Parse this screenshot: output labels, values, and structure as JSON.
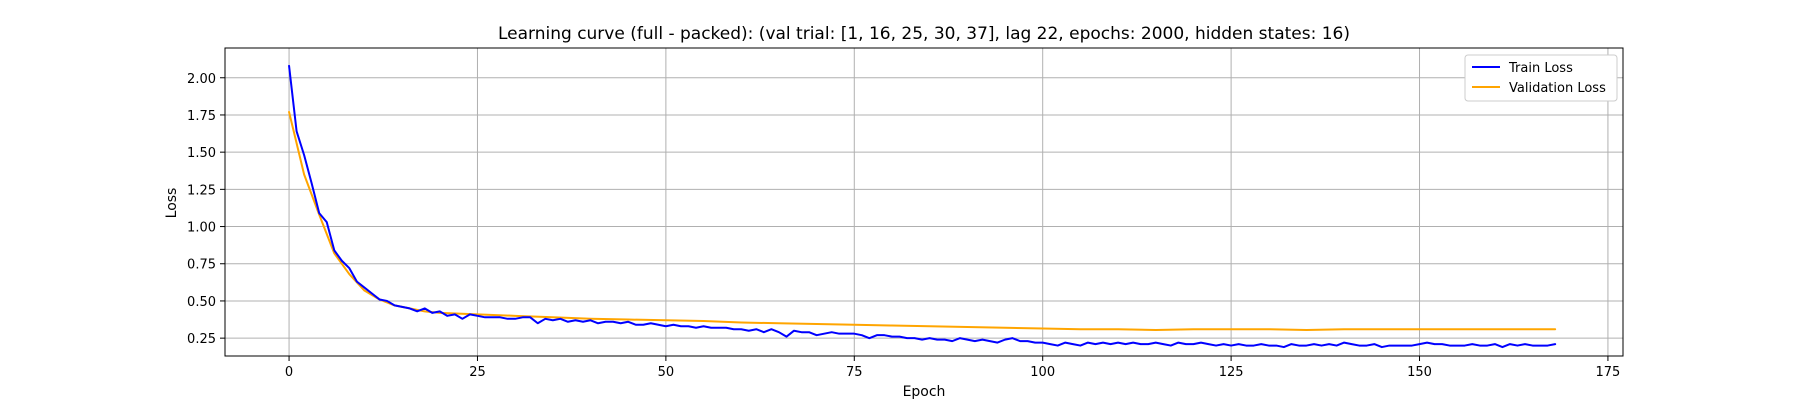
{
  "chart_data": {
    "type": "line",
    "title": "Learning curve (full - packed): (val trial: [1, 16, 25, 30, 37], lag 22, epochs: 2000, hidden states: 16)",
    "xlabel": "Epoch",
    "ylabel": "Loss",
    "xlim": [
      -8.5,
      177
    ],
    "ylim": [
      0.13,
      2.2
    ],
    "xticks": [
      0,
      25,
      50,
      75,
      100,
      125,
      150,
      175
    ],
    "yticks": [
      0.25,
      0.5,
      0.75,
      1.0,
      1.25,
      1.5,
      1.75,
      2.0
    ],
    "xtick_labels": [
      "0",
      "25",
      "50",
      "75",
      "100",
      "125",
      "150",
      "175"
    ],
    "ytick_labels": [
      "0.25",
      "0.50",
      "0.75",
      "1.00",
      "1.25",
      "1.50",
      "1.75",
      "2.00"
    ],
    "grid": true,
    "legend_position": "top-right",
    "series": [
      {
        "name": "Train Loss",
        "color": "#0000ff",
        "points": [
          [
            0,
            2.08
          ],
          [
            1,
            1.64
          ],
          [
            2,
            1.48
          ],
          [
            3,
            1.29
          ],
          [
            4,
            1.09
          ],
          [
            5,
            1.03
          ],
          [
            6,
            0.84
          ],
          [
            7,
            0.77
          ],
          [
            8,
            0.72
          ],
          [
            9,
            0.63
          ],
          [
            10,
            0.59
          ],
          [
            11,
            0.55
          ],
          [
            12,
            0.51
          ],
          [
            13,
            0.5
          ],
          [
            14,
            0.47
          ],
          [
            15,
            0.46
          ],
          [
            16,
            0.45
          ],
          [
            17,
            0.43
          ],
          [
            18,
            0.45
          ],
          [
            19,
            0.42
          ],
          [
            20,
            0.43
          ],
          [
            21,
            0.4
          ],
          [
            22,
            0.41
          ],
          [
            23,
            0.38
          ],
          [
            24,
            0.41
          ],
          [
            25,
            0.4
          ],
          [
            26,
            0.39
          ],
          [
            27,
            0.39
          ],
          [
            28,
            0.39
          ],
          [
            29,
            0.38
          ],
          [
            30,
            0.38
          ],
          [
            31,
            0.39
          ],
          [
            32,
            0.39
          ],
          [
            33,
            0.35
          ],
          [
            34,
            0.38
          ],
          [
            35,
            0.37
          ],
          [
            36,
            0.38
          ],
          [
            37,
            0.36
          ],
          [
            38,
            0.37
          ],
          [
            39,
            0.36
          ],
          [
            40,
            0.37
          ],
          [
            41,
            0.35
          ],
          [
            42,
            0.36
          ],
          [
            43,
            0.36
          ],
          [
            44,
            0.35
          ],
          [
            45,
            0.36
          ],
          [
            46,
            0.34
          ],
          [
            47,
            0.34
          ],
          [
            48,
            0.35
          ],
          [
            49,
            0.34
          ],
          [
            50,
            0.33
          ],
          [
            51,
            0.34
          ],
          [
            52,
            0.33
          ],
          [
            53,
            0.33
          ],
          [
            54,
            0.32
          ],
          [
            55,
            0.33
          ],
          [
            56,
            0.32
          ],
          [
            57,
            0.32
          ],
          [
            58,
            0.32
          ],
          [
            59,
            0.31
          ],
          [
            60,
            0.31
          ],
          [
            61,
            0.3
          ],
          [
            62,
            0.31
          ],
          [
            63,
            0.29
          ],
          [
            64,
            0.31
          ],
          [
            65,
            0.29
          ],
          [
            66,
            0.26
          ],
          [
            67,
            0.3
          ],
          [
            68,
            0.29
          ],
          [
            69,
            0.29
          ],
          [
            70,
            0.27
          ],
          [
            71,
            0.28
          ],
          [
            72,
            0.29
          ],
          [
            73,
            0.28
          ],
          [
            74,
            0.28
          ],
          [
            75,
            0.28
          ],
          [
            76,
            0.27
          ],
          [
            77,
            0.25
          ],
          [
            78,
            0.27
          ],
          [
            79,
            0.27
          ],
          [
            80,
            0.26
          ],
          [
            81,
            0.26
          ],
          [
            82,
            0.25
          ],
          [
            83,
            0.25
          ],
          [
            84,
            0.24
          ],
          [
            85,
            0.25
          ],
          [
            86,
            0.24
          ],
          [
            87,
            0.24
          ],
          [
            88,
            0.23
          ],
          [
            89,
            0.25
          ],
          [
            90,
            0.24
          ],
          [
            91,
            0.23
          ],
          [
            92,
            0.24
          ],
          [
            93,
            0.23
          ],
          [
            94,
            0.22
          ],
          [
            95,
            0.24
          ],
          [
            96,
            0.25
          ],
          [
            97,
            0.23
          ],
          [
            98,
            0.23
          ],
          [
            99,
            0.22
          ],
          [
            100,
            0.22
          ],
          [
            101,
            0.21
          ],
          [
            102,
            0.2
          ],
          [
            103,
            0.22
          ],
          [
            104,
            0.21
          ],
          [
            105,
            0.2
          ],
          [
            106,
            0.22
          ],
          [
            107,
            0.21
          ],
          [
            108,
            0.22
          ],
          [
            109,
            0.21
          ],
          [
            110,
            0.22
          ],
          [
            111,
            0.21
          ],
          [
            112,
            0.22
          ],
          [
            113,
            0.21
          ],
          [
            114,
            0.21
          ],
          [
            115,
            0.22
          ],
          [
            116,
            0.21
          ],
          [
            117,
            0.2
          ],
          [
            118,
            0.22
          ],
          [
            119,
            0.21
          ],
          [
            120,
            0.21
          ],
          [
            121,
            0.22
          ],
          [
            122,
            0.21
          ],
          [
            123,
            0.2
          ],
          [
            124,
            0.21
          ],
          [
            125,
            0.2
          ],
          [
            126,
            0.21
          ],
          [
            127,
            0.2
          ],
          [
            128,
            0.2
          ],
          [
            129,
            0.21
          ],
          [
            130,
            0.2
          ],
          [
            131,
            0.2
          ],
          [
            132,
            0.19
          ],
          [
            133,
            0.21
          ],
          [
            134,
            0.2
          ],
          [
            135,
            0.2
          ],
          [
            136,
            0.21
          ],
          [
            137,
            0.2
          ],
          [
            138,
            0.21
          ],
          [
            139,
            0.2
          ],
          [
            140,
            0.22
          ],
          [
            141,
            0.21
          ],
          [
            142,
            0.2
          ],
          [
            143,
            0.2
          ],
          [
            144,
            0.21
          ],
          [
            145,
            0.19
          ],
          [
            146,
            0.2
          ],
          [
            147,
            0.2
          ],
          [
            148,
            0.2
          ],
          [
            149,
            0.2
          ],
          [
            150,
            0.21
          ],
          [
            151,
            0.22
          ],
          [
            152,
            0.21
          ],
          [
            153,
            0.21
          ],
          [
            154,
            0.2
          ],
          [
            155,
            0.2
          ],
          [
            156,
            0.2
          ],
          [
            157,
            0.21
          ],
          [
            158,
            0.2
          ],
          [
            159,
            0.2
          ],
          [
            160,
            0.21
          ],
          [
            161,
            0.19
          ],
          [
            162,
            0.21
          ],
          [
            163,
            0.2
          ],
          [
            164,
            0.21
          ],
          [
            165,
            0.2
          ],
          [
            166,
            0.2
          ],
          [
            167,
            0.2
          ],
          [
            168,
            0.21
          ]
        ]
      },
      {
        "name": "Validation Loss",
        "color": "#ffa500",
        "points": [
          [
            0,
            1.77
          ],
          [
            2,
            1.35
          ],
          [
            4,
            1.08
          ],
          [
            6,
            0.82
          ],
          [
            8,
            0.68
          ],
          [
            10,
            0.57
          ],
          [
            12,
            0.51
          ],
          [
            14,
            0.47
          ],
          [
            16,
            0.45
          ],
          [
            18,
            0.43
          ],
          [
            20,
            0.42
          ],
          [
            25,
            0.41
          ],
          [
            30,
            0.4
          ],
          [
            35,
            0.39
          ],
          [
            40,
            0.38
          ],
          [
            45,
            0.375
          ],
          [
            50,
            0.37
          ],
          [
            55,
            0.365
          ],
          [
            60,
            0.355
          ],
          [
            65,
            0.35
          ],
          [
            70,
            0.345
          ],
          [
            75,
            0.34
          ],
          [
            80,
            0.335
          ],
          [
            85,
            0.33
          ],
          [
            90,
            0.325
          ],
          [
            95,
            0.32
          ],
          [
            100,
            0.315
          ],
          [
            105,
            0.31
          ],
          [
            110,
            0.31
          ],
          [
            115,
            0.305
          ],
          [
            120,
            0.31
          ],
          [
            125,
            0.31
          ],
          [
            130,
            0.31
          ],
          [
            135,
            0.305
          ],
          [
            140,
            0.31
          ],
          [
            145,
            0.31
          ],
          [
            150,
            0.31
          ],
          [
            155,
            0.31
          ],
          [
            160,
            0.31
          ],
          [
            165,
            0.31
          ],
          [
            168,
            0.31
          ]
        ]
      }
    ]
  }
}
